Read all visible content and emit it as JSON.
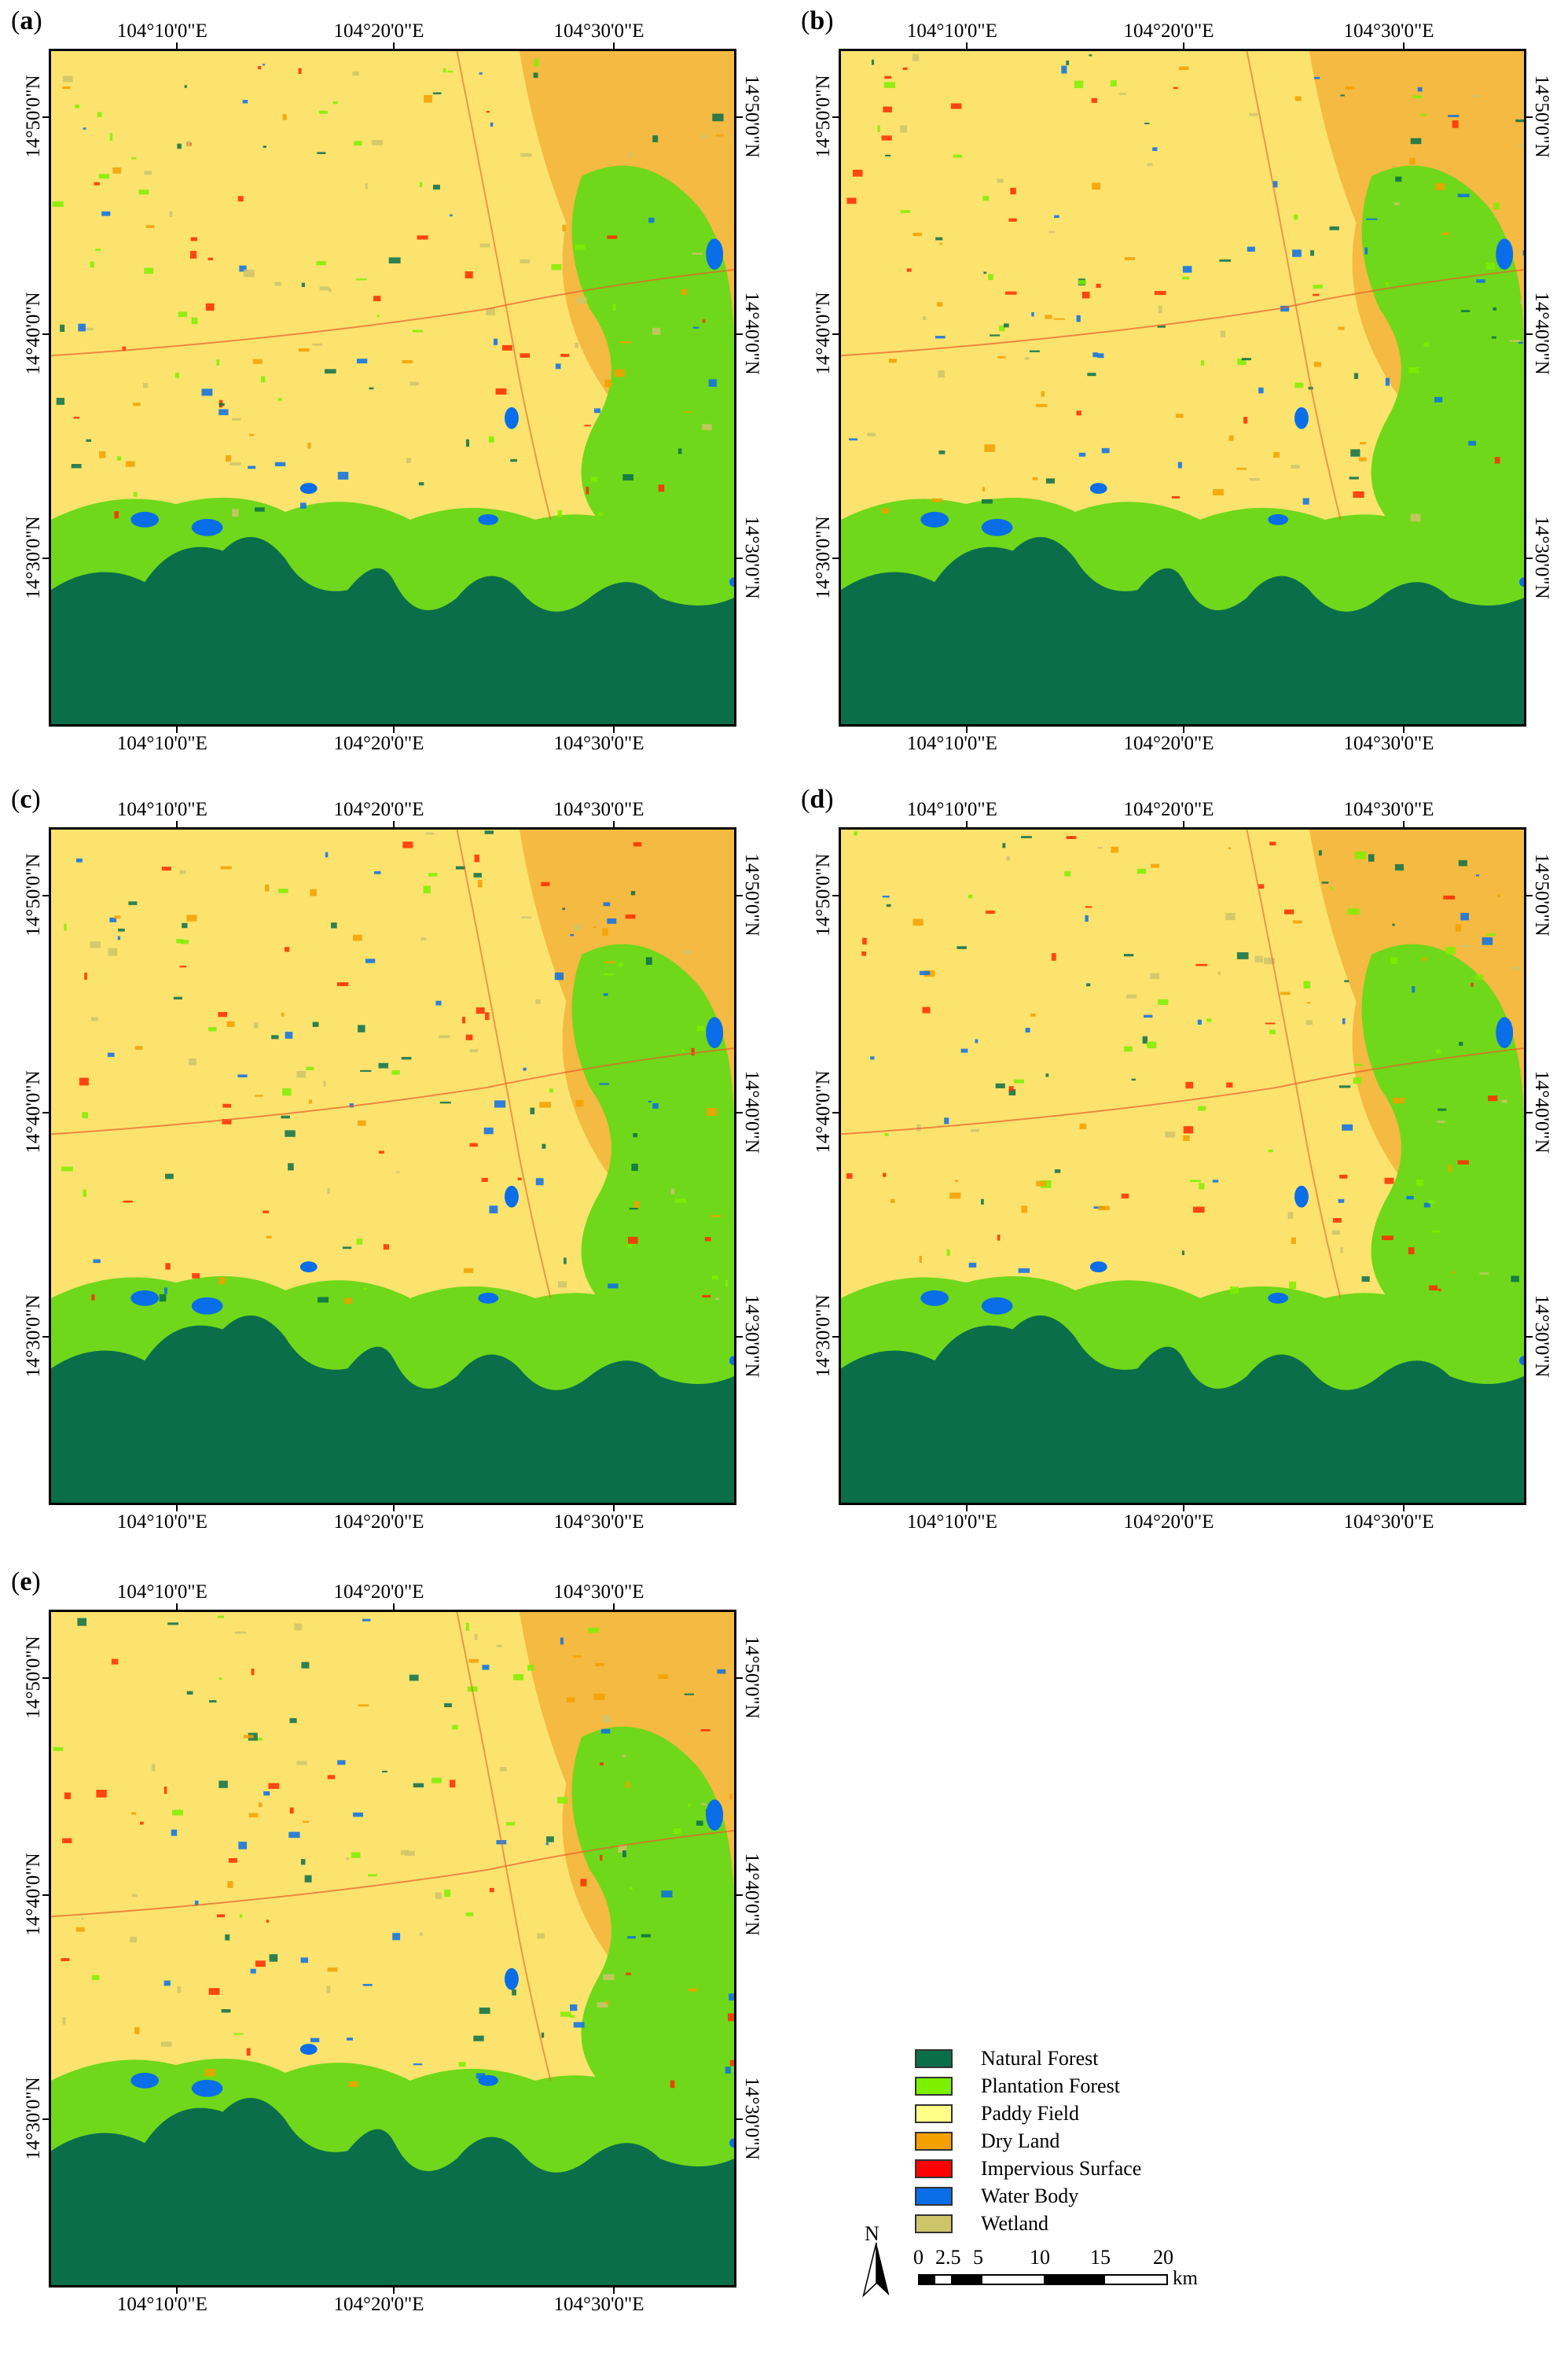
{
  "panels": [
    {
      "label": "a"
    },
    {
      "label": "b"
    },
    {
      "label": "c"
    },
    {
      "label": "d"
    },
    {
      "label": "e"
    }
  ],
  "longitudes": [
    "104°10'0\"E",
    "104°20'0\"E",
    "104°30'0\"E"
  ],
  "latitudes": [
    "14°50'0\"N",
    "14°40'0\"N",
    "14°30'0\"N"
  ],
  "legend": {
    "items": [
      {
        "label": "Natural Forest",
        "color": "#0b6e4a"
      },
      {
        "label": "Plantation Forest",
        "color": "#7cf000"
      },
      {
        "label": "Paddy Field",
        "color": "#ffff88"
      },
      {
        "label": "Dry Land",
        "color": "#f5a000"
      },
      {
        "label": "Impervious Surface",
        "color": "#ff0000"
      },
      {
        "label": "Water Body",
        "color": "#0a6ee8"
      },
      {
        "label": "Wetland",
        "color": "#cfc46a"
      }
    ]
  },
  "north_arrow": {
    "label": "N"
  },
  "scale_bar": {
    "ticks": [
      "0",
      "2.5",
      "5",
      "10",
      "15",
      "20"
    ],
    "unit": "km"
  }
}
